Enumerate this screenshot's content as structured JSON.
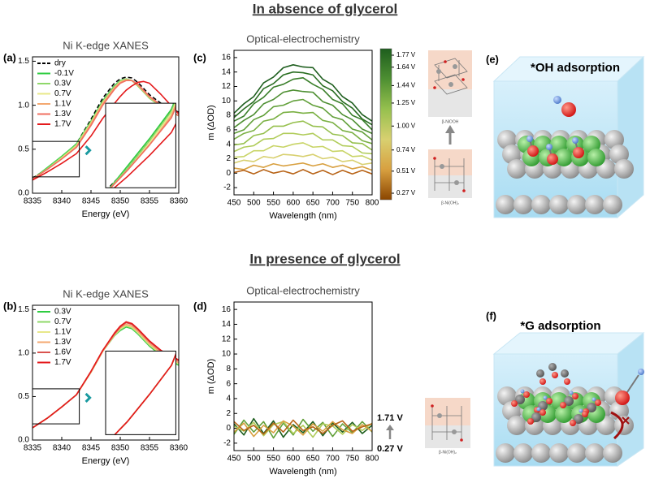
{
  "headings": [
    "In absence of glycerol",
    "In presence of glycerol"
  ],
  "panel_labels": [
    "(a)",
    "(b)",
    "(c)",
    "(d)",
    "(e)",
    "(f)"
  ],
  "structures": [
    "β-NiOOH",
    "β-Ni(OH)₂",
    "β-Ni(OH)₂"
  ],
  "adsorption": [
    "*OH adsorption",
    "*G adsorption"
  ],
  "chart_data": [
    {
      "type": "line",
      "title": "Ni K-edge XANES",
      "xlabel": "Energy (eV)",
      "inset": true,
      "legend": "upper left",
      "x": [
        8335,
        8337.5,
        8340,
        8342.5,
        8345,
        8347,
        8349,
        8350,
        8351,
        8352,
        8353,
        8354,
        8355,
        8357,
        8360
      ],
      "xlim": [
        8335,
        8360
      ],
      "xticks": [
        8335,
        8340,
        8345,
        8350,
        8355,
        8360
      ],
      "ylim": [
        0,
        1.55
      ],
      "yticks": [
        {
          "value": 0,
          "label": "0.0"
        },
        {
          "value": 0.5,
          "label": "0.5"
        },
        {
          "value": 1,
          "label": "1.0"
        },
        {
          "value": 1.5,
          "label": "1.5"
        }
      ],
      "series": [
        {
          "name": "dry",
          "color": "#000000",
          "linestyle": "dashed",
          "values": [
            0.17,
            0.28,
            0.41,
            0.56,
            0.84,
            1.08,
            1.25,
            1.3,
            1.32,
            1.31,
            1.26,
            1.19,
            1.12,
            1.02,
            0.92
          ]
        },
        {
          "name": "-0.1V",
          "color": "#2ecc40",
          "values": [
            0.16,
            0.29,
            0.42,
            0.56,
            0.82,
            1.05,
            1.22,
            1.28,
            1.3,
            1.28,
            1.22,
            1.15,
            1.08,
            0.98,
            0.88
          ]
        },
        {
          "name": "0.3V",
          "color": "#8fd86a",
          "values": [
            0.16,
            0.28,
            0.41,
            0.55,
            0.81,
            1.04,
            1.21,
            1.27,
            1.3,
            1.28,
            1.22,
            1.15,
            1.08,
            0.98,
            0.88
          ]
        },
        {
          "name": "0.7V",
          "color": "#e8e88a",
          "values": [
            0.16,
            0.27,
            0.4,
            0.54,
            0.8,
            1.03,
            1.2,
            1.27,
            1.29,
            1.28,
            1.23,
            1.16,
            1.09,
            0.99,
            0.88
          ]
        },
        {
          "name": "1.1V",
          "color": "#f4a870",
          "values": [
            0.16,
            0.27,
            0.39,
            0.53,
            0.79,
            1.02,
            1.2,
            1.26,
            1.29,
            1.28,
            1.23,
            1.16,
            1.09,
            0.99,
            0.88
          ]
        },
        {
          "name": "1.3V",
          "color": "#f07060",
          "values": [
            0.16,
            0.27,
            0.39,
            0.52,
            0.77,
            1.0,
            1.18,
            1.25,
            1.28,
            1.28,
            1.24,
            1.17,
            1.1,
            1.0,
            0.88
          ]
        },
        {
          "name": "1.7V",
          "color": "#e41a1c",
          "values": [
            0.15,
            0.24,
            0.34,
            0.45,
            0.65,
            0.85,
            1.02,
            1.1,
            1.17,
            1.22,
            1.26,
            1.27,
            1.25,
            1.12,
            0.9
          ]
        }
      ]
    },
    {
      "type": "line",
      "title": "Optical-electrochemistry",
      "xlabel": "Wavelength (nm)",
      "ylabel": "m (ΔOD)",
      "x": [
        450,
        475,
        500,
        525,
        550,
        575,
        600,
        625,
        650,
        675,
        700,
        725,
        750,
        775,
        800
      ],
      "xlim": [
        450,
        800
      ],
      "xticks": [
        450,
        500,
        550,
        600,
        650,
        700,
        750,
        800
      ],
      "ylim": [
        -3,
        17
      ],
      "yticks": [
        -2,
        0,
        2,
        4,
        6,
        8,
        10,
        12,
        14,
        16
      ],
      "series": [
        {
          "color": "#1e5e1e",
          "values": [
            8.3,
            9.6,
            10.6,
            12.5,
            13.3,
            14.6,
            15.0,
            14.7,
            14.6,
            13.0,
            12.2,
            10.6,
            9.7,
            8.1,
            7.2
          ]
        },
        {
          "color": "#2a6e22",
          "values": [
            7.7,
            8.9,
            9.9,
            11.7,
            12.4,
            13.6,
            14.0,
            13.9,
            13.6,
            12.1,
            11.4,
            9.9,
            9.0,
            7.5,
            6.7
          ]
        },
        {
          "color": "#3a7f2a",
          "values": [
            7.2,
            7.9,
            9.6,
            10.5,
            11.9,
            12.3,
            13.0,
            13.2,
            12.3,
            11.6,
            10.2,
            9.6,
            8.0,
            7.4,
            6.0
          ]
        },
        {
          "color": "#4e8f32",
          "values": [
            6.3,
            7.3,
            8.1,
            9.6,
            10.2,
            11.2,
            11.5,
            11.3,
            11.2,
            9.9,
            9.4,
            8.1,
            7.4,
            6.1,
            5.5
          ]
        },
        {
          "color": "#62a03a",
          "values": [
            5.5,
            6.0,
            7.4,
            8.0,
            9.2,
            9.4,
            10.0,
            10.2,
            9.4,
            9.0,
            7.8,
            7.4,
            6.1,
            5.7,
            4.6
          ]
        },
        {
          "color": "#7ab043",
          "values": [
            4.7,
            5.5,
            5.9,
            7.2,
            7.5,
            8.4,
            8.5,
            8.3,
            8.4,
            7.3,
            7.0,
            5.9,
            5.6,
            4.5,
            4.1
          ]
        },
        {
          "color": "#96c04e",
          "values": [
            3.9,
            4.1,
            5.2,
            5.5,
            6.5,
            6.5,
            7.0,
            7.2,
            6.5,
            6.4,
            5.4,
            5.2,
            4.2,
            4.1,
            3.2
          ]
        },
        {
          "color": "#b0cc5a",
          "values": [
            3.0,
            3.6,
            3.8,
            4.7,
            4.8,
            5.5,
            5.5,
            5.3,
            5.5,
            4.6,
            4.6,
            3.8,
            3.7,
            2.8,
            2.7
          ]
        },
        {
          "color": "#c8d466",
          "values": [
            2.2,
            2.3,
            3.1,
            3.1,
            3.8,
            3.6,
            4.0,
            4.2,
            3.6,
            3.7,
            3.0,
            3.1,
            2.3,
            2.4,
            1.8
          ]
        },
        {
          "color": "#d8d070",
          "values": [
            1.4,
            1.8,
            1.6,
            2.3,
            2.1,
            2.6,
            2.5,
            2.3,
            2.6,
            2.0,
            2.2,
            1.6,
            1.8,
            1.2,
            1.4
          ]
        },
        {
          "color": "#d8a040",
          "values": [
            0.7,
            0.5,
            1.1,
            0.8,
            1.3,
            1.0,
            1.2,
            1.4,
            1.0,
            1.3,
            0.8,
            1.1,
            0.6,
            0.9,
            0.4
          ]
        },
        {
          "color": "#b86418",
          "values": [
            0.1,
            0.4,
            -0.1,
            0.5,
            0.0,
            0.3,
            -0.1,
            0.5,
            -0.1,
            0.4,
            -0.2,
            0.4,
            -0.1,
            0.4,
            -0.1
          ]
        }
      ],
      "colorbar": {
        "colors": [
          "#1e5e1e",
          "#4e8f32",
          "#96c04e",
          "#d8d070",
          "#d8a040",
          "#8b4500"
        ],
        "ticks": [
          {
            "value": 1.77,
            "label": "1.77 V"
          },
          {
            "value": 1.64,
            "label": "1.64 V"
          },
          {
            "value": 1.44,
            "label": "1.44 V"
          },
          {
            "value": 1.25,
            "label": "1.25 V"
          },
          {
            "value": 1,
            "label": "1.00 V"
          },
          {
            "value": 0.74,
            "label": "0.74 V"
          },
          {
            "value": 0.51,
            "label": "0.51 V"
          },
          {
            "value": 0.27,
            "label": "0.27 V"
          }
        ]
      }
    },
    {
      "type": "line",
      "title": "Ni K-edge XANES",
      "xlabel": "Energy (eV)",
      "inset": true,
      "legend": "upper left",
      "x": [
        8335,
        8337.5,
        8340,
        8342.5,
        8345,
        8347,
        8349,
        8350,
        8351,
        8352,
        8353,
        8354,
        8355,
        8357,
        8360
      ],
      "xlim": [
        8335,
        8360
      ],
      "xticks": [
        8335,
        8340,
        8345,
        8350,
        8355,
        8360
      ],
      "ylim": [
        0,
        1.55
      ],
      "yticks": [
        {
          "value": 0,
          "label": "0.0"
        },
        {
          "value": 0.5,
          "label": "0.5"
        },
        {
          "value": 1,
          "label": "1.0"
        },
        {
          "value": 1.5,
          "label": "1.5"
        }
      ],
      "series": [
        {
          "name": "0.3V",
          "color": "#2ecc40",
          "values": [
            0.14,
            0.25,
            0.38,
            0.52,
            0.78,
            1.02,
            1.2,
            1.26,
            1.3,
            1.28,
            1.22,
            1.15,
            1.08,
            0.97,
            0.86
          ]
        },
        {
          "name": "0.7V",
          "color": "#8fd86a",
          "values": [
            0.14,
            0.25,
            0.38,
            0.52,
            0.78,
            1.02,
            1.2,
            1.27,
            1.31,
            1.29,
            1.23,
            1.16,
            1.09,
            0.98,
            0.87
          ]
        },
        {
          "name": "1.1V",
          "color": "#e8e88a",
          "values": [
            0.14,
            0.25,
            0.38,
            0.52,
            0.78,
            1.02,
            1.21,
            1.28,
            1.32,
            1.3,
            1.24,
            1.17,
            1.1,
            0.99,
            0.88
          ]
        },
        {
          "name": "1.3V",
          "color": "#f4a870",
          "values": [
            0.14,
            0.25,
            0.38,
            0.52,
            0.78,
            1.02,
            1.21,
            1.29,
            1.33,
            1.31,
            1.25,
            1.18,
            1.11,
            1.0,
            0.89
          ]
        },
        {
          "name": "1.6V",
          "color": "#d9534f",
          "values": [
            0.14,
            0.25,
            0.38,
            0.52,
            0.79,
            1.03,
            1.22,
            1.3,
            1.35,
            1.33,
            1.27,
            1.2,
            1.13,
            1.02,
            0.91
          ]
        },
        {
          "name": "1.7V",
          "color": "#e41a1c",
          "values": [
            0.14,
            0.25,
            0.38,
            0.52,
            0.79,
            1.03,
            1.23,
            1.31,
            1.36,
            1.34,
            1.28,
            1.21,
            1.14,
            1.03,
            0.92
          ]
        }
      ]
    },
    {
      "type": "line",
      "title": "Optical-electrochemistry",
      "xlabel": "Wavelength (nm)",
      "ylabel": "m (ΔOD)",
      "x": [
        450,
        475,
        500,
        525,
        550,
        575,
        600,
        625,
        650,
        675,
        700,
        725,
        750,
        775,
        800
      ],
      "xlim": [
        450,
        800
      ],
      "xticks": [
        450,
        500,
        550,
        600,
        650,
        700,
        750,
        800
      ],
      "ylim": [
        -3,
        17
      ],
      "yticks": [
        -2,
        0,
        2,
        4,
        6,
        8,
        10,
        12,
        14,
        16
      ],
      "annotations": [
        "1.71 V",
        "0.27 V"
      ],
      "series": [
        {
          "color": "#1e5e1e",
          "values": [
            0.6,
            -0.9,
            1.3,
            -0.7,
            1.0,
            -1.2,
            0.5,
            -0.6,
            0.9,
            -1.0,
            0.7,
            -0.5,
            0.8,
            -0.7,
            0.4
          ]
        },
        {
          "color": "#62a03a",
          "values": [
            -0.8,
            1.1,
            -0.5,
            0.9,
            -1.3,
            0.7,
            -0.9,
            1.2,
            -0.4,
            0.8,
            -1.1,
            0.6,
            -0.6,
            0.9,
            -0.5
          ]
        },
        {
          "color": "#b0cc5a",
          "values": [
            0.3,
            -0.4,
            0.8,
            -1.0,
            0.5,
            0.9,
            -0.7,
            0.4,
            -1.2,
            0.6,
            0.3,
            -0.8,
            0.5,
            -0.3,
            0.7
          ]
        },
        {
          "color": "#d8a040",
          "values": [
            -0.5,
            0.7,
            -1.1,
            0.4,
            -0.6,
            1.0,
            0.3,
            -0.9,
            0.6,
            -0.4,
            0.9,
            -0.2,
            -0.7,
            0.5,
            -0.4
          ]
        },
        {
          "color": "#b86418",
          "values": [
            0.9,
            -0.3,
            0.4,
            -0.8,
            0.7,
            -0.5,
            1.1,
            -0.3,
            0.2,
            -0.7,
            0.4,
            1.0,
            -0.4,
            0.2,
            0.6
          ]
        }
      ]
    }
  ]
}
